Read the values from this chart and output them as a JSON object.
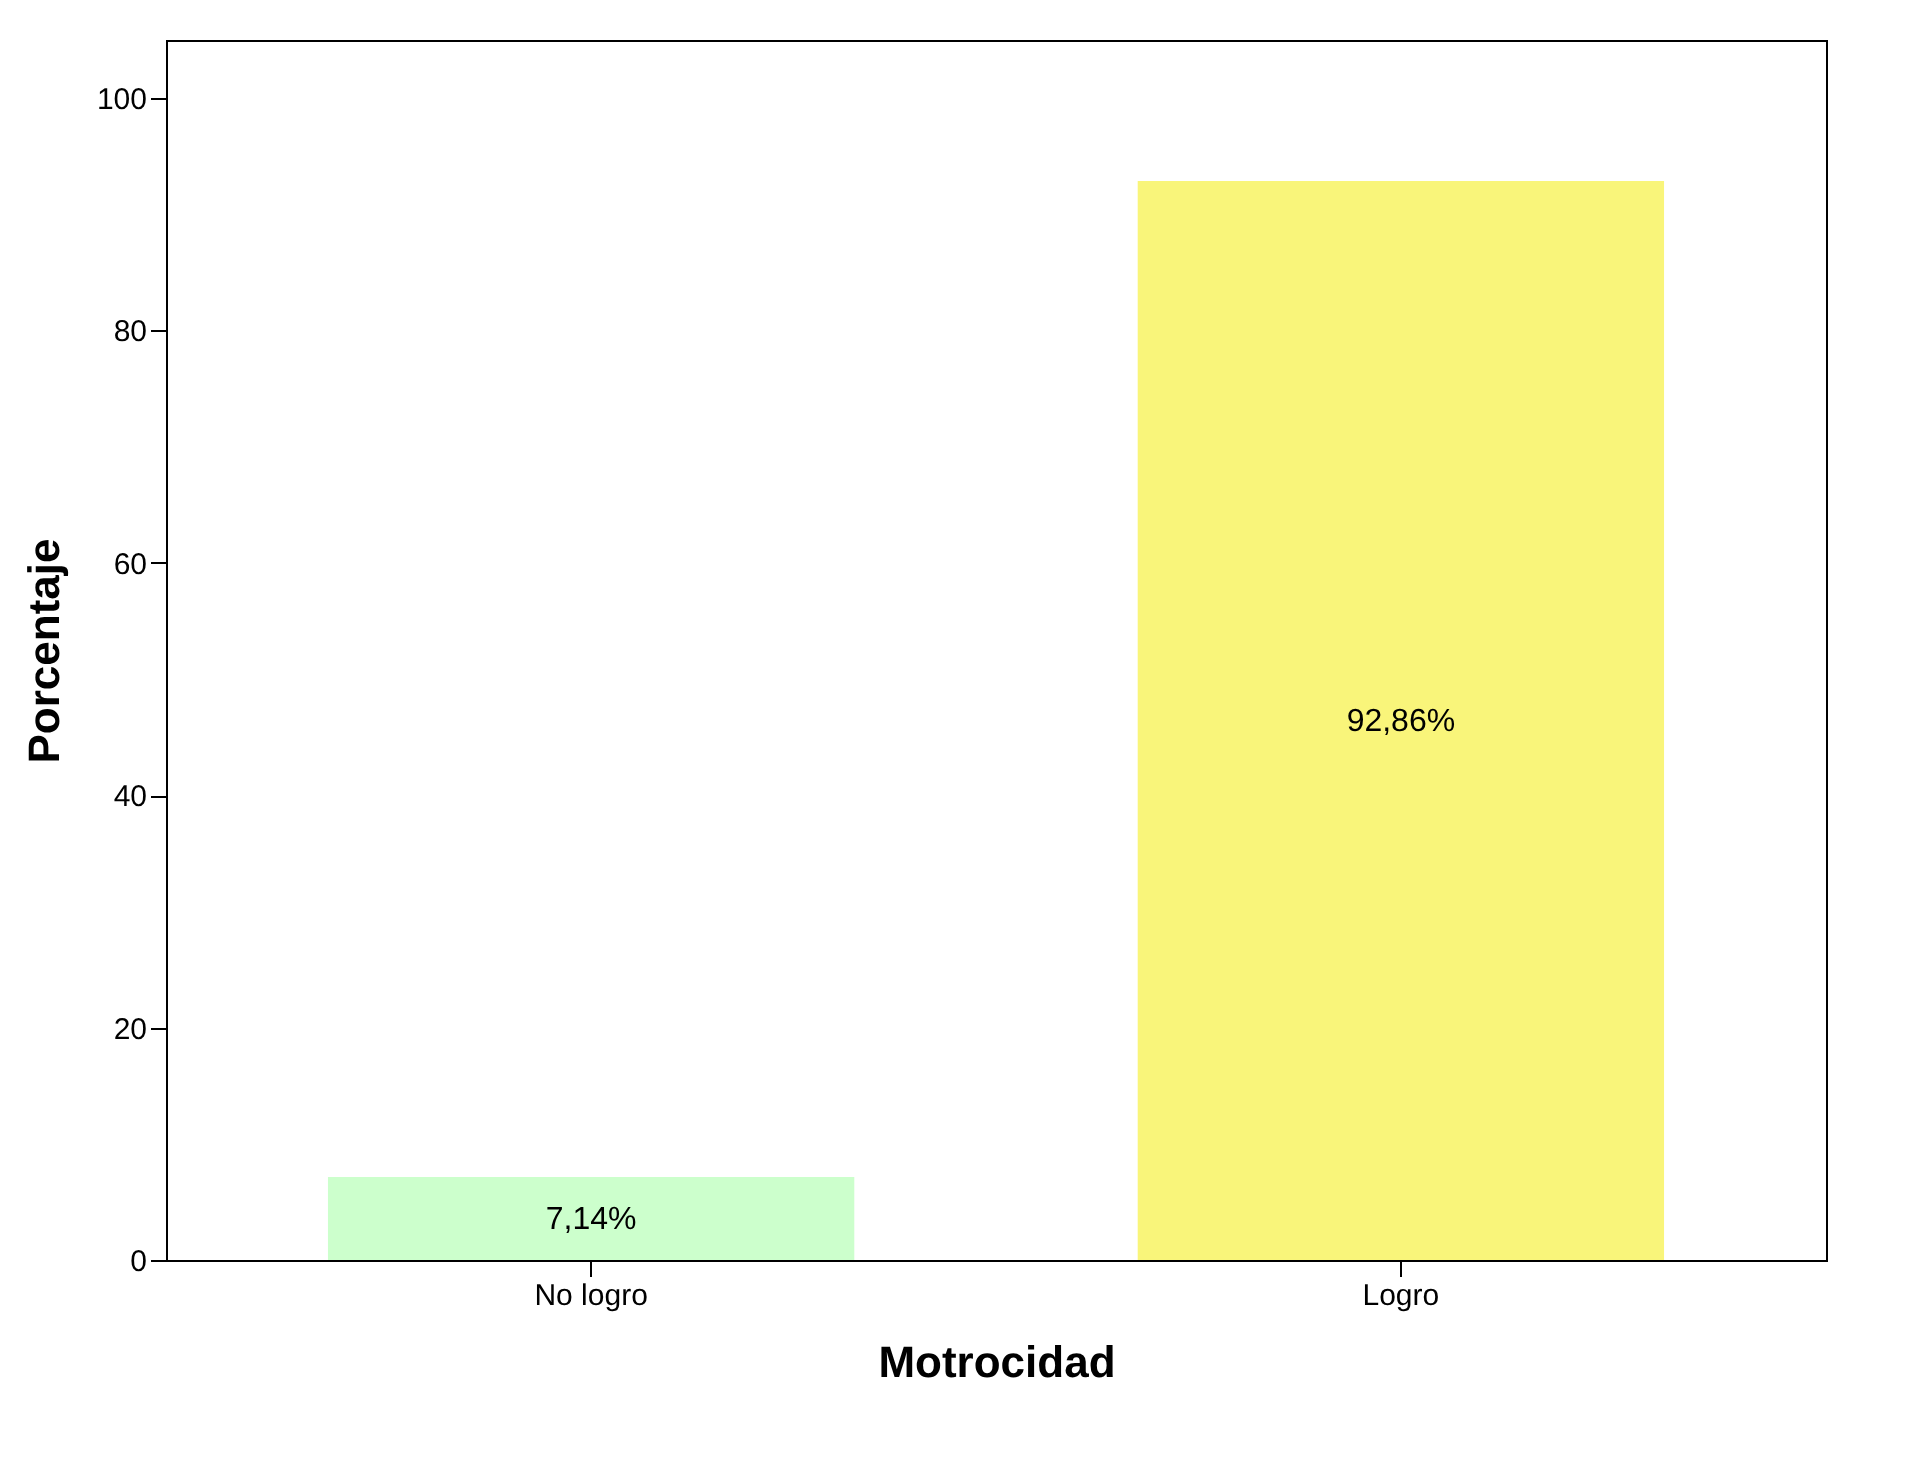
{
  "chart_data": {
    "type": "bar",
    "xlabel": "Motrocidad",
    "ylabel": "Porcentaje",
    "categories": [
      "No logro",
      "Logro"
    ],
    "values": [
      7.14,
      92.86
    ],
    "colors": [
      "#ccffcc",
      "#f9f57a"
    ],
    "value_labels": [
      "7,14%",
      "92,86%"
    ],
    "ylim": [
      0,
      105
    ],
    "yticks": [
      0,
      20,
      40,
      60,
      80,
      100
    ],
    "grid": false
  }
}
